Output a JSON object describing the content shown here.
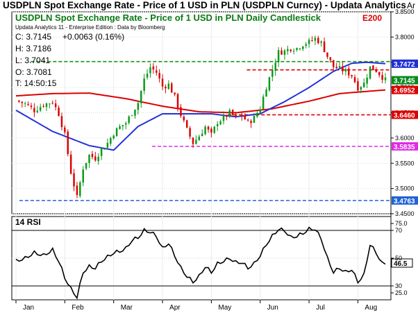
{
  "window": {
    "title": "USDPLN Spot Exchange Rate - Price of 1 USD in PLN (USDPLN Curncy) - Updata Analytics",
    "axis_tag": "Ar"
  },
  "chart_data": [
    {
      "type": "candlestick",
      "title": "USDPLN Spot Exchange Rate - Price of 1 USD in PLN Daily Candlestick",
      "indicator_label": "E200",
      "source_note": "Updata Analytics 11 - Enterprise Edition : Data by Bloomberg",
      "ohlc_readout": {
        "close": "C: 3.7145",
        "change": "+0.0063 (0.16%)",
        "high": "H: 3.7186",
        "low": "L: 3.7041",
        "open": "O: 3.7081",
        "time": "T: 14:50:15"
      },
      "ylim": [
        3.45,
        3.85
      ],
      "y_ticks": [
        "3.4500",
        "3.5000",
        "3.5500",
        "3.6000",
        "3.6500",
        "3.7000",
        "3.7500",
        "3.8000",
        "3.8500"
      ],
      "x_labels": [
        "Jan",
        "Feb",
        "Mar",
        "Apr",
        "May",
        "Jun",
        "Jul",
        "Aug"
      ],
      "right_labels": [
        {
          "text": "3.7472",
          "value": 3.7472,
          "color": "#1f2fd6"
        },
        {
          "text": "3.7145",
          "value": 3.7145,
          "color": "#0a8a1e"
        },
        {
          "text": "3.6952",
          "value": 3.6952,
          "color": "#dd0000"
        },
        {
          "text": "3.6460",
          "value": 3.646,
          "color": "#dd0000"
        },
        {
          "text": "3.5835",
          "value": 3.5835,
          "color": "#e12ae6"
        },
        {
          "text": "3.4763",
          "value": 3.4763,
          "color": "#1f62d6"
        }
      ],
      "hlines": [
        {
          "value": 3.7515,
          "color": "#149a14",
          "from": 0.05
        },
        {
          "value": 3.7349,
          "color": "#dd0000",
          "from": 0.62
        },
        {
          "value": 3.646,
          "color": "#dd0000",
          "from": 0.57
        },
        {
          "value": 3.5835,
          "color": "#e12ae6",
          "from": 0.37
        },
        {
          "value": 3.4763,
          "color": "#1f62d6",
          "from": 0.02
        }
      ],
      "close_path": [
        [
          0,
          3.674
        ],
        [
          3,
          3.668
        ],
        [
          6,
          3.655
        ],
        [
          9,
          3.666
        ],
        [
          12,
          3.672
        ],
        [
          14,
          3.648
        ],
        [
          16,
          3.606
        ],
        [
          18,
          3.532
        ],
        [
          20,
          3.482
        ],
        [
          22,
          3.541
        ],
        [
          24,
          3.566
        ],
        [
          26,
          3.56
        ],
        [
          28,
          3.577
        ],
        [
          30,
          3.59
        ],
        [
          32,
          3.61
        ],
        [
          34,
          3.622
        ],
        [
          36,
          3.63
        ],
        [
          38,
          3.65
        ],
        [
          40,
          3.67
        ],
        [
          42,
          3.716
        ],
        [
          44,
          3.74
        ],
        [
          46,
          3.73
        ],
        [
          48,
          3.702
        ],
        [
          50,
          3.706
        ],
        [
          52,
          3.681
        ],
        [
          54,
          3.646
        ],
        [
          56,
          3.616
        ],
        [
          58,
          3.59
        ],
        [
          60,
          3.604
        ],
        [
          62,
          3.622
        ],
        [
          64,
          3.606
        ],
        [
          66,
          3.632
        ],
        [
          68,
          3.64
        ],
        [
          70,
          3.65
        ],
        [
          72,
          3.64
        ],
        [
          74,
          3.645
        ],
        [
          76,
          3.63
        ],
        [
          78,
          3.64
        ],
        [
          80,
          3.66
        ],
        [
          82,
          3.702
        ],
        [
          84,
          3.736
        ],
        [
          86,
          3.77
        ],
        [
          88,
          3.772
        ],
        [
          90,
          3.778
        ],
        [
          92,
          3.778
        ],
        [
          94,
          3.786
        ],
        [
          96,
          3.79
        ],
        [
          98,
          3.797
        ],
        [
          100,
          3.788
        ],
        [
          102,
          3.762
        ],
        [
          104,
          3.741
        ],
        [
          106,
          3.737
        ],
        [
          108,
          3.732
        ],
        [
          110,
          3.724
        ],
        [
          112,
          3.7
        ],
        [
          114,
          3.708
        ],
        [
          116,
          3.74
        ],
        [
          118,
          3.734
        ],
        [
          120,
          3.721
        ],
        [
          121,
          3.7145
        ]
      ],
      "ma_blue": [
        [
          0,
          3.655
        ],
        [
          12,
          3.613
        ],
        [
          24,
          3.585
        ],
        [
          32,
          3.576
        ],
        [
          40,
          3.623
        ],
        [
          48,
          3.648
        ],
        [
          56,
          3.648
        ],
        [
          64,
          3.648
        ],
        [
          72,
          3.642
        ],
        [
          80,
          3.648
        ],
        [
          88,
          3.672
        ],
        [
          96,
          3.7
        ],
        [
          104,
          3.732
        ],
        [
          110,
          3.748
        ],
        [
          115,
          3.75
        ],
        [
          121,
          3.7472
        ]
      ],
      "ma_red": [
        [
          0,
          3.6835
        ],
        [
          12,
          3.688
        ],
        [
          24,
          3.689
        ],
        [
          36,
          3.678
        ],
        [
          48,
          3.663
        ],
        [
          60,
          3.652
        ],
        [
          72,
          3.65
        ],
        [
          84,
          3.658
        ],
        [
          96,
          3.673
        ],
        [
          106,
          3.688
        ],
        [
          112,
          3.691
        ],
        [
          121,
          3.6952
        ]
      ]
    },
    {
      "type": "line",
      "title": "14 RSI",
      "ylim": [
        20,
        80
      ],
      "y_ticks": [
        {
          "v": 75,
          "t": "75.0"
        },
        {
          "v": 70,
          "t": "70"
        },
        {
          "v": 50,
          "t": "50"
        },
        {
          "v": 30,
          "t": "30"
        },
        {
          "v": 25,
          "t": "25.0"
        }
      ],
      "last_label": "46.5",
      "rsi_path": [
        [
          0,
          48
        ],
        [
          3,
          50
        ],
        [
          6,
          54
        ],
        [
          9,
          52
        ],
        [
          12,
          56
        ],
        [
          14,
          48
        ],
        [
          16,
          36
        ],
        [
          18,
          28
        ],
        [
          20,
          22
        ],
        [
          22,
          40
        ],
        [
          24,
          44
        ],
        [
          26,
          43
        ],
        [
          28,
          48
        ],
        [
          30,
          51
        ],
        [
          32,
          54
        ],
        [
          34,
          55
        ],
        [
          36,
          57
        ],
        [
          38,
          63
        ],
        [
          40,
          65
        ],
        [
          42,
          70
        ],
        [
          44,
          69
        ],
        [
          46,
          66
        ],
        [
          48,
          57
        ],
        [
          50,
          61
        ],
        [
          52,
          52
        ],
        [
          54,
          43
        ],
        [
          56,
          37
        ],
        [
          58,
          33
        ],
        [
          60,
          37
        ],
        [
          62,
          44
        ],
        [
          64,
          40
        ],
        [
          66,
          46
        ],
        [
          68,
          48
        ],
        [
          70,
          50
        ],
        [
          72,
          47
        ],
        [
          74,
          47
        ],
        [
          76,
          43
        ],
        [
          78,
          46
        ],
        [
          80,
          52
        ],
        [
          82,
          60
        ],
        [
          84,
          66
        ],
        [
          86,
          71
        ],
        [
          88,
          70
        ],
        [
          90,
          65
        ],
        [
          92,
          66
        ],
        [
          94,
          68
        ],
        [
          96,
          71
        ],
        [
          98,
          71
        ],
        [
          100,
          64
        ],
        [
          102,
          50
        ],
        [
          104,
          40
        ],
        [
          106,
          43
        ],
        [
          108,
          40
        ],
        [
          110,
          42
        ],
        [
          112,
          33
        ],
        [
          114,
          38
        ],
        [
          116,
          60
        ],
        [
          118,
          54
        ],
        [
          120,
          46
        ],
        [
          121,
          46.5
        ]
      ]
    }
  ]
}
